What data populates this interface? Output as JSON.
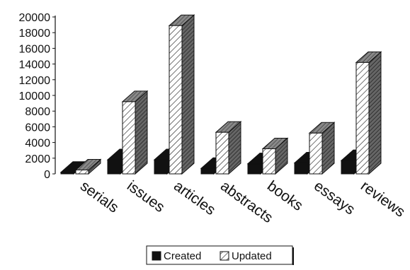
{
  "chart_data": {
    "type": "bar",
    "title": "",
    "xlabel": "",
    "ylabel": "",
    "categories": [
      "serials",
      "issues",
      "articles",
      "abstracts",
      "books",
      "essays",
      "reviews"
    ],
    "series": [
      {
        "name": "Created",
        "values": [
          200,
          1800,
          1800,
          700,
          1300,
          1400,
          1700
        ],
        "color": "#111111",
        "pattern": "solid"
      },
      {
        "name": "Updated",
        "values": [
          500,
          9200,
          18900,
          5300,
          3200,
          5200,
          14200
        ],
        "color": "#f2f2f2",
        "pattern": "hatched"
      }
    ],
    "ylim": [
      0,
      20000
    ],
    "yticks": [
      "0",
      "2000",
      "4000",
      "6000",
      "8000",
      "10000",
      "12000",
      "14000",
      "16000",
      "18000",
      "20000"
    ],
    "grid": false,
    "legend": {
      "placement": "bottom-center",
      "entries": [
        "Created",
        "Updated"
      ]
    },
    "style": "3d-column"
  }
}
